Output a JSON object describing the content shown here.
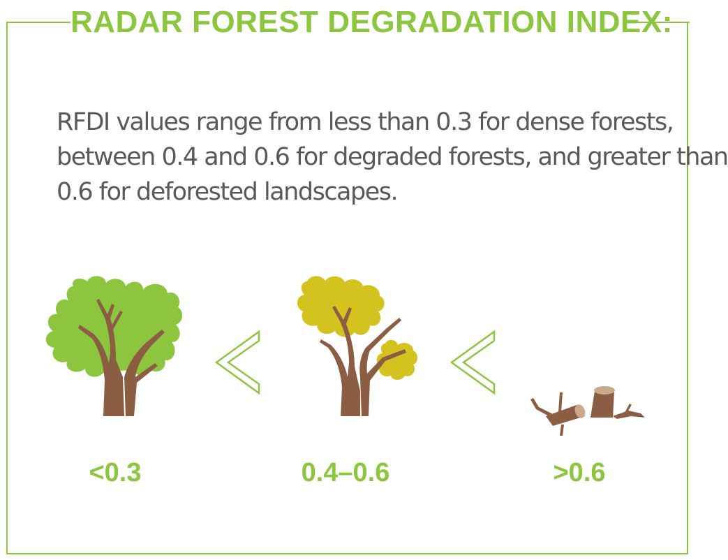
{
  "title": "RADAR FOREST DEGRADATION INDEX:",
  "description_lines": [
    "RFDI values range from less than 0.3 for dense forests,",
    "between 0.4 and 0.6 for degraded forests, and greater than",
    "0.6 for deforested landscapes."
  ],
  "labels": [
    "<0.3",
    "0.4–0.6",
    ">0.6"
  ],
  "icons": [
    "dense-tree-icon",
    "less-than-icon",
    "degraded-tree-icon",
    "less-than-icon",
    "stump-icon"
  ],
  "colors": {
    "accent": "#8cc63f",
    "text": "#58595b",
    "dense_canopy": "#8cc63f",
    "degraded_canopy": "#d4c31e",
    "trunk": "#8b5e44"
  }
}
